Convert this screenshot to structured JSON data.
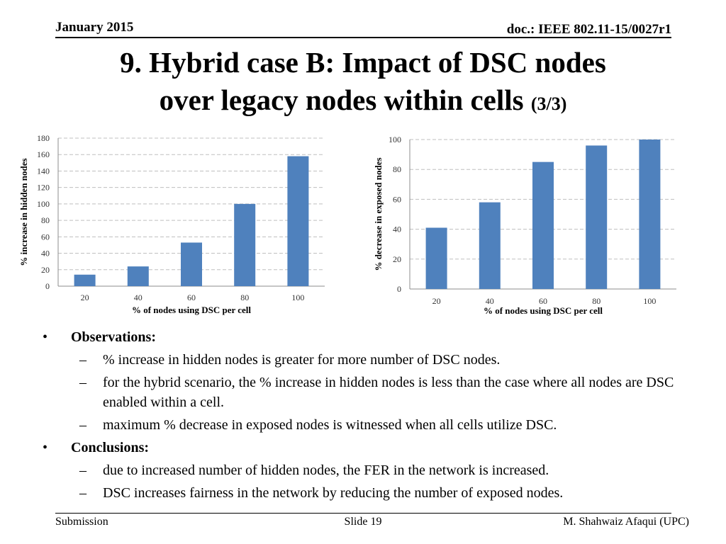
{
  "header": {
    "date": "January 2015",
    "doc": "doc.: IEEE 802.11-15/0027r1"
  },
  "title": {
    "line1": "9. Hybrid case B: Impact of DSC nodes",
    "line2": "over legacy nodes within cells",
    "suffix": "(3/3)"
  },
  "colors": {
    "bar": "#4f81bd",
    "grid": "#bfbfbf",
    "axis": "#8c8c8c"
  },
  "chart_data": [
    {
      "type": "bar",
      "categories": [
        "20",
        "40",
        "60",
        "80",
        "100"
      ],
      "values": [
        14,
        24,
        53,
        100,
        158
      ],
      "xlabel": "% of nodes using DSC per cell",
      "ylabel": "% increase in hidden nodes",
      "ylim": [
        0,
        180
      ],
      "yticks": [
        0,
        20,
        40,
        60,
        80,
        100,
        120,
        140,
        160,
        180
      ],
      "grid": true
    },
    {
      "type": "bar",
      "categories": [
        "20",
        "40",
        "60",
        "80",
        "100"
      ],
      "values": [
        41,
        58,
        85,
        96,
        100
      ],
      "xlabel": "% of nodes using DSC per cell",
      "ylabel": "% decrease in exposed nodes",
      "ylim": [
        0,
        100
      ],
      "yticks": [
        0,
        20,
        40,
        60,
        80,
        100
      ],
      "grid": true
    }
  ],
  "body": {
    "observations_heading": "Observations:",
    "observations": [
      "% increase in hidden nodes is greater for more number of DSC nodes.",
      "for the hybrid scenario, the % increase in hidden nodes is less than the case where all nodes are DSC enabled within a cell.",
      "maximum % decrease in exposed nodes is witnessed when all cells utilize DSC."
    ],
    "conclusions_heading": "Conclusions:",
    "conclusions": [
      "due to increased number of hidden nodes, the FER in the network is increased.",
      "DSC increases fairness in the network by reducing the number of exposed nodes."
    ],
    "bullet": "•",
    "dash": "–"
  },
  "footer": {
    "left": "Submission",
    "center": "Slide 19",
    "right": "M. Shahwaiz Afaqui (UPC)"
  }
}
